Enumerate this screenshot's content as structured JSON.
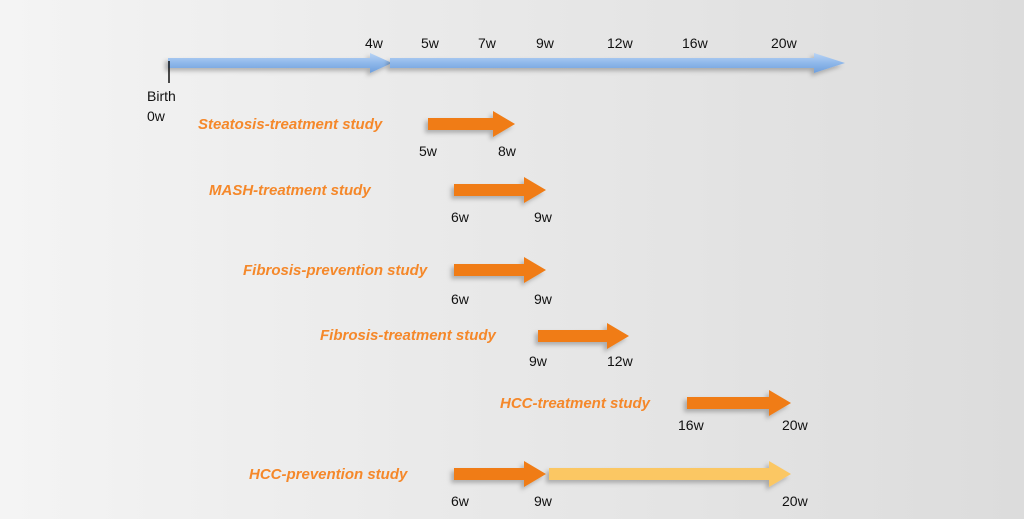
{
  "timeline": {
    "ticks": [
      "4w",
      "5w",
      "7w",
      "9w",
      "12w",
      "16w",
      "20w"
    ],
    "birth_label": "Birth",
    "start_label": "0w",
    "color": "#8fb8ea"
  },
  "colors": {
    "study_label": "#f5882a",
    "treatment_arrow": "#f07b12",
    "prevention_arrow": "#fbc763"
  },
  "studies": [
    {
      "name": "Steatosis-treatment study",
      "start": "5w",
      "end": "8w"
    },
    {
      "name": "MASH-treatment study",
      "start": "6w",
      "end": "9w"
    },
    {
      "name": "Fibrosis-prevention study",
      "start": "6w",
      "end": "9w"
    },
    {
      "name": "Fibrosis-treatment study",
      "start": "9w",
      "end": "12w"
    },
    {
      "name": "HCC-treatment study",
      "start": "16w",
      "end": "20w"
    },
    {
      "name": "HCC-prevention study",
      "start": "6w",
      "mid": "9w",
      "end": "20w"
    }
  ]
}
